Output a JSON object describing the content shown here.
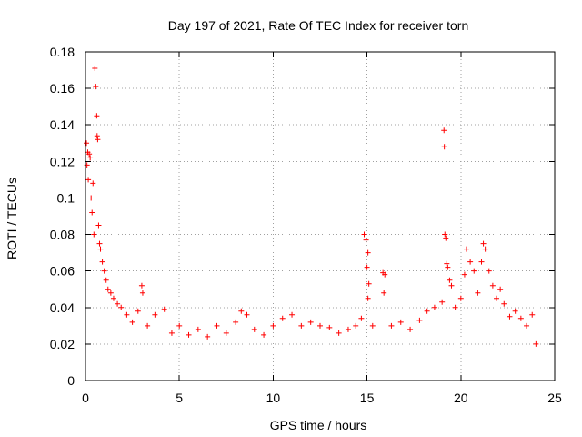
{
  "chart_data": {
    "type": "scatter",
    "title": "Day 197 of 2021, Rate Of TEC Index for receiver torn",
    "xlabel": "GPS time / hours",
    "ylabel": "ROTI / TECUs",
    "xlim": [
      0,
      25
    ],
    "ylim": [
      0,
      0.18
    ],
    "xticks": [
      0,
      5,
      10,
      15,
      20,
      25
    ],
    "xtick_labels": [
      "0",
      "5",
      "10",
      "15",
      "20",
      "25"
    ],
    "yticks": [
      0,
      0.02,
      0.04,
      0.06,
      0.08,
      0.1,
      0.12,
      0.14,
      0.16,
      0.18
    ],
    "ytick_labels": [
      "0",
      "0.02",
      "0.04",
      "0.06",
      "0.08",
      "0.1",
      "0.12",
      "0.14",
      "0.16",
      "0.18"
    ],
    "grid": true,
    "marker": "+",
    "marker_color": "#ff0000",
    "series": [
      {
        "name": "ROTI",
        "points": [
          [
            0.05,
            0.13
          ],
          [
            0.08,
            0.118
          ],
          [
            0.12,
            0.125
          ],
          [
            0.15,
            0.11
          ],
          [
            0.2,
            0.124
          ],
          [
            0.25,
            0.122
          ],
          [
            0.3,
            0.1
          ],
          [
            0.35,
            0.092
          ],
          [
            0.4,
            0.108
          ],
          [
            0.45,
            0.08
          ],
          [
            0.5,
            0.171
          ],
          [
            0.55,
            0.161
          ],
          [
            0.6,
            0.145
          ],
          [
            0.62,
            0.134
          ],
          [
            0.65,
            0.132
          ],
          [
            0.7,
            0.085
          ],
          [
            0.75,
            0.075
          ],
          [
            0.8,
            0.072
          ],
          [
            0.9,
            0.065
          ],
          [
            1.0,
            0.06
          ],
          [
            1.1,
            0.055
          ],
          [
            1.2,
            0.05
          ],
          [
            1.35,
            0.048
          ],
          [
            1.5,
            0.045
          ],
          [
            1.7,
            0.042
          ],
          [
            1.9,
            0.04
          ],
          [
            2.2,
            0.036
          ],
          [
            2.5,
            0.032
          ],
          [
            2.8,
            0.038
          ],
          [
            3.0,
            0.052
          ],
          [
            3.05,
            0.048
          ],
          [
            3.3,
            0.03
          ],
          [
            3.7,
            0.036
          ],
          [
            4.2,
            0.039
          ],
          [
            4.6,
            0.026
          ],
          [
            5.0,
            0.03
          ],
          [
            5.5,
            0.025
          ],
          [
            6.0,
            0.028
          ],
          [
            6.5,
            0.024
          ],
          [
            7.0,
            0.03
          ],
          [
            7.5,
            0.026
          ],
          [
            8.0,
            0.032
          ],
          [
            8.3,
            0.038
          ],
          [
            8.6,
            0.036
          ],
          [
            9.0,
            0.028
          ],
          [
            9.5,
            0.025
          ],
          [
            10.0,
            0.03
          ],
          [
            10.5,
            0.034
          ],
          [
            11.0,
            0.036
          ],
          [
            11.5,
            0.03
          ],
          [
            12.0,
            0.032
          ],
          [
            12.5,
            0.03
          ],
          [
            13.0,
            0.029
          ],
          [
            13.5,
            0.026
          ],
          [
            14.0,
            0.028
          ],
          [
            14.4,
            0.03
          ],
          [
            14.7,
            0.034
          ],
          [
            14.85,
            0.08
          ],
          [
            14.95,
            0.077
          ],
          [
            15.05,
            0.07
          ],
          [
            15.0,
            0.062
          ],
          [
            15.1,
            0.053
          ],
          [
            15.05,
            0.045
          ],
          [
            15.3,
            0.03
          ],
          [
            15.85,
            0.059
          ],
          [
            15.95,
            0.058
          ],
          [
            15.9,
            0.048
          ],
          [
            16.3,
            0.03
          ],
          [
            16.8,
            0.032
          ],
          [
            17.3,
            0.028
          ],
          [
            17.8,
            0.033
          ],
          [
            18.2,
            0.038
          ],
          [
            18.6,
            0.04
          ],
          [
            19.0,
            0.043
          ],
          [
            19.1,
            0.137
          ],
          [
            19.12,
            0.128
          ],
          [
            19.15,
            0.08
          ],
          [
            19.2,
            0.078
          ],
          [
            19.25,
            0.064
          ],
          [
            19.3,
            0.062
          ],
          [
            19.4,
            0.055
          ],
          [
            19.5,
            0.052
          ],
          [
            19.7,
            0.04
          ],
          [
            20.0,
            0.045
          ],
          [
            20.2,
            0.058
          ],
          [
            20.3,
            0.072
          ],
          [
            20.5,
            0.065
          ],
          [
            20.7,
            0.06
          ],
          [
            20.9,
            0.048
          ],
          [
            21.1,
            0.065
          ],
          [
            21.2,
            0.075
          ],
          [
            21.3,
            0.072
          ],
          [
            21.5,
            0.06
          ],
          [
            21.7,
            0.052
          ],
          [
            21.9,
            0.045
          ],
          [
            22.1,
            0.05
          ],
          [
            22.3,
            0.042
          ],
          [
            22.6,
            0.035
          ],
          [
            22.9,
            0.038
          ],
          [
            23.2,
            0.034
          ],
          [
            23.5,
            0.03
          ],
          [
            23.8,
            0.036
          ],
          [
            24.0,
            0.02
          ]
        ]
      }
    ]
  }
}
